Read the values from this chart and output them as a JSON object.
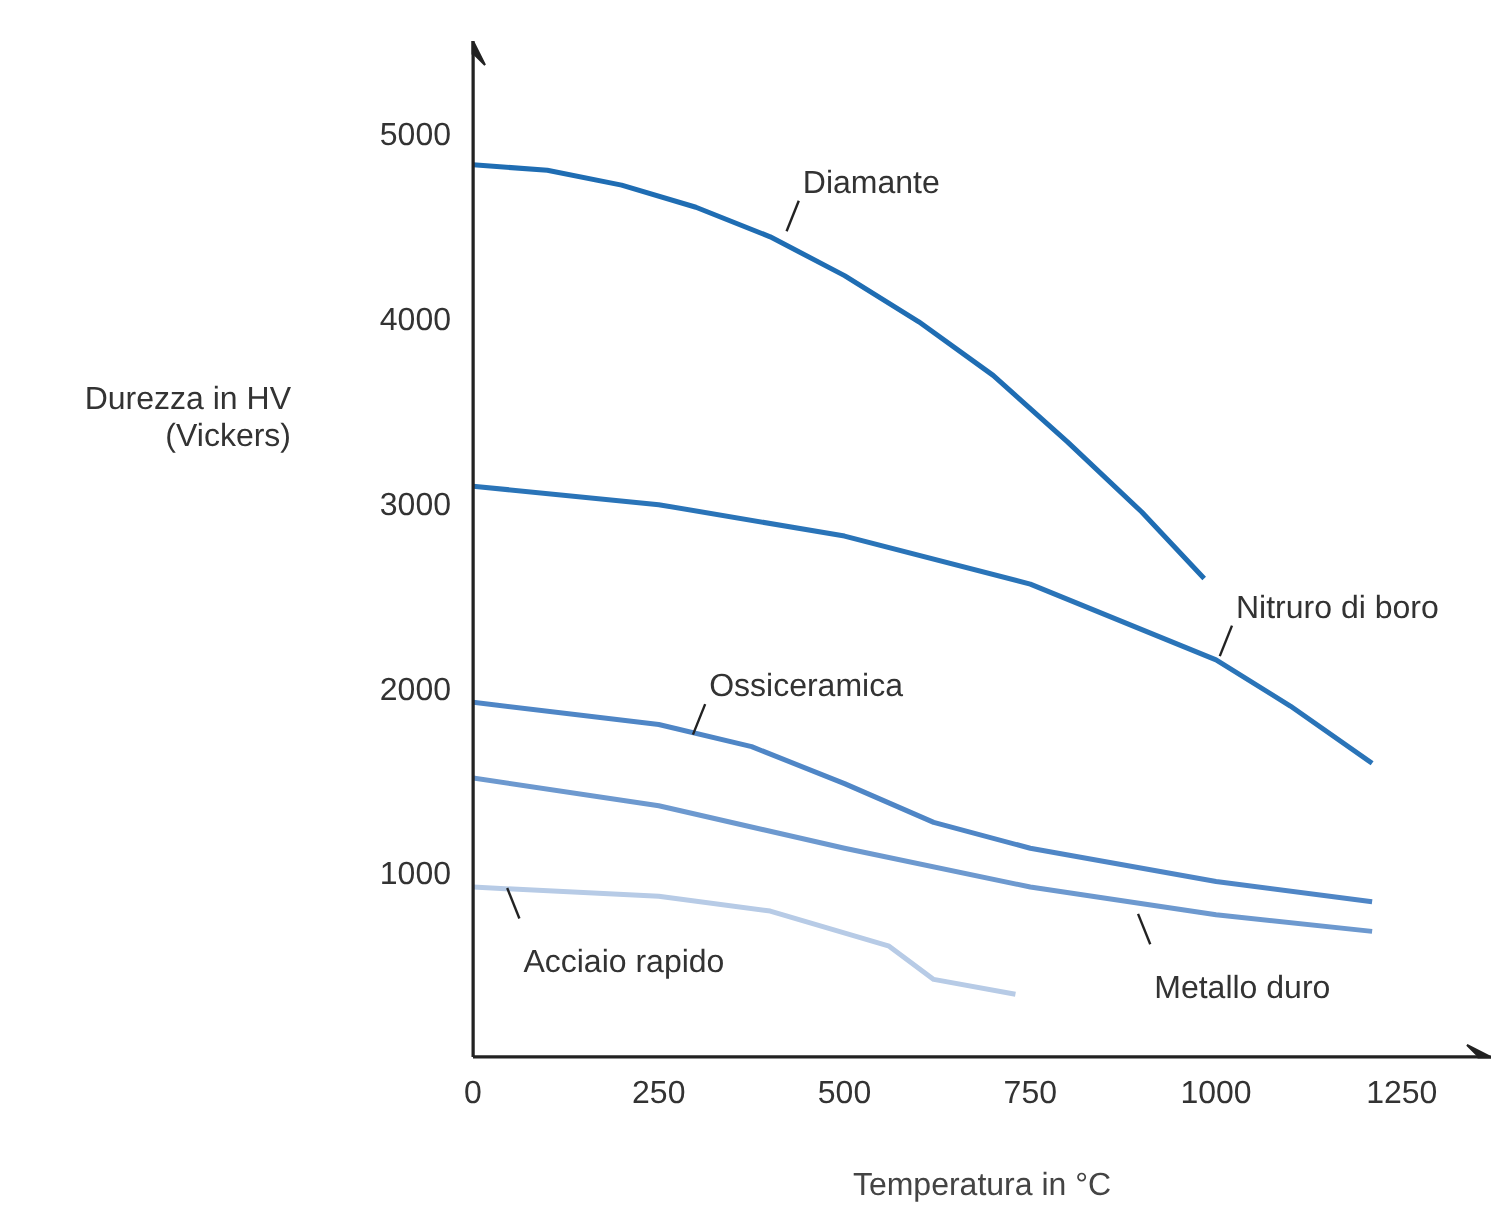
{
  "chart_data": {
    "type": "line",
    "ylabel": "Durezza in HV\n(Vickers)",
    "xlabel": "Temperatura in °C",
    "xlim": [
      0,
      1370
    ],
    "ylim": [
      0,
      5500
    ],
    "xticks": [
      0,
      250,
      500,
      750,
      1000,
      1250
    ],
    "yticks": [
      1000,
      2000,
      3000,
      4000,
      5000
    ],
    "grid": false,
    "marker": "none",
    "line_style": "solid",
    "series": [
      {
        "color": "#1f6db3",
        "x": [
          0,
          100,
          200,
          300,
          400,
          500,
          600,
          700,
          800,
          900,
          984
        ],
        "values": [
          4830,
          4800,
          4720,
          4600,
          4440,
          4230,
          3980,
          3690,
          3330,
          2950,
          2590
        ]
      },
      {
        "color": "#2a74b8",
        "x": [
          0,
          250,
          500,
          750,
          1000,
          1100,
          1210
        ],
        "values": [
          3090,
          2990,
          2820,
          2560,
          2150,
          1900,
          1590
        ]
      },
      {
        "color": "#4f86c6",
        "x": [
          0,
          250,
          375,
          500,
          620,
          750,
          1000,
          1210
        ],
        "values": [
          1920,
          1800,
          1680,
          1480,
          1270,
          1130,
          950,
          840
        ]
      },
      {
        "color": "#6d99cf",
        "x": [
          0,
          250,
          500,
          750,
          1000,
          1210
        ],
        "values": [
          1510,
          1360,
          1130,
          920,
          770,
          680
        ]
      },
      {
        "color": "#b7cbe6",
        "x": [
          0,
          250,
          400,
          560,
          620,
          730
        ],
        "values": [
          920,
          870,
          790,
          600,
          420,
          340
        ]
      }
    ],
    "annotations": [
      {
        "text": "Diamante",
        "x": 422,
        "y": 4470
      },
      {
        "text": "Nitruro di boro",
        "x": 1005,
        "y": 2170
      },
      {
        "text": "Ossiceramica",
        "x": 296,
        "y": 1745
      },
      {
        "text": "Metallo duro",
        "x": 895,
        "y": 775
      },
      {
        "text": "Acciaio rapido",
        "x": 46,
        "y": 915
      }
    ]
  }
}
